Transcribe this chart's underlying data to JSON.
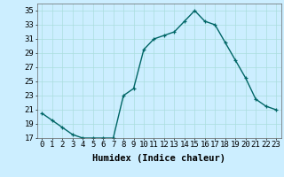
{
  "x": [
    0,
    1,
    2,
    3,
    4,
    5,
    6,
    7,
    8,
    9,
    10,
    11,
    12,
    13,
    14,
    15,
    16,
    17,
    18,
    19,
    20,
    21,
    22,
    23
  ],
  "y": [
    20.5,
    19.5,
    18.5,
    17.5,
    17.0,
    17.0,
    17.0,
    17.0,
    23.0,
    24.0,
    29.5,
    31.0,
    31.5,
    32.0,
    33.5,
    35.0,
    33.5,
    33.0,
    30.5,
    28.0,
    25.5,
    22.5,
    21.5,
    21.0
  ],
  "bg_color": "#cceeff",
  "line_color": "#006666",
  "marker": "+",
  "xlabel": "Humidex (Indice chaleur)",
  "ylim": [
    17,
    36
  ],
  "xlim": [
    -0.5,
    23.5
  ],
  "yticks": [
    17,
    19,
    21,
    23,
    25,
    27,
    29,
    31,
    33,
    35
  ],
  "xticks": [
    0,
    1,
    2,
    3,
    4,
    5,
    6,
    7,
    8,
    9,
    10,
    11,
    12,
    13,
    14,
    15,
    16,
    17,
    18,
    19,
    20,
    21,
    22,
    23
  ],
  "grid_color": "#aadddd",
  "font_size": 6.5,
  "xlabel_fontsize": 7.5,
  "line_width": 1.0,
  "marker_size": 3.5
}
